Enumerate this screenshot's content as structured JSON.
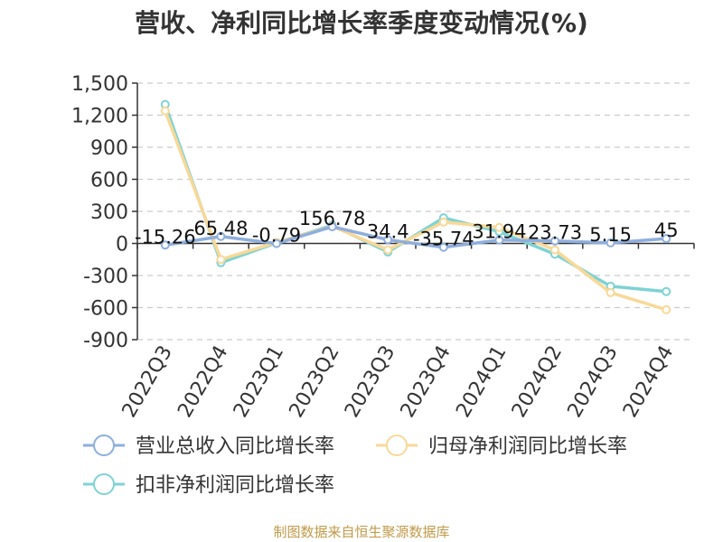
{
  "title": "营收、净利同比增长率季度变动情况(%)",
  "source": "制图数据来自恒生聚源数据库",
  "chart_data": {
    "type": "line",
    "title": "营收、净利同比增长率季度变动情况(%)",
    "categories": [
      "2022Q3",
      "2022Q4",
      "2023Q1",
      "2023Q2",
      "2023Q3",
      "2023Q4",
      "2024Q1",
      "2024Q2",
      "2024Q3",
      "2024Q4"
    ],
    "ylim": [
      -900,
      1500
    ],
    "yticks": [
      -900,
      -600,
      -300,
      0,
      300,
      600,
      900,
      1200,
      1500
    ],
    "ytick_labels": [
      "-900",
      "-600",
      "-300",
      "0",
      "300",
      "600",
      "900",
      "1,200",
      "1,500"
    ],
    "grid": true,
    "legend_position": "bottom",
    "series": [
      {
        "name": "营业总收入同比增长率",
        "color": "#8eaedd",
        "values": [
          -15.26,
          65.48,
          -0.79,
          156.78,
          34.4,
          -35.74,
          31.94,
          23.73,
          5.15,
          45
        ],
        "labels": [
          "-15.26",
          "65.48",
          "-0.79",
          "156.78",
          "34.4",
          "-35.74",
          "31.94",
          "23.73",
          "5.15",
          "45"
        ]
      },
      {
        "name": "归母净利润同比增长率",
        "color": "#f9d897",
        "values": [
          1240,
          -150,
          10,
          160,
          -60,
          200,
          150,
          -60,
          -460,
          -620
        ]
      },
      {
        "name": "扣非净利润同比增长率",
        "color": "#7ed3d4",
        "values": [
          1300,
          -180,
          5,
          170,
          -80,
          240,
          110,
          -100,
          -400,
          -450
        ]
      }
    ]
  }
}
